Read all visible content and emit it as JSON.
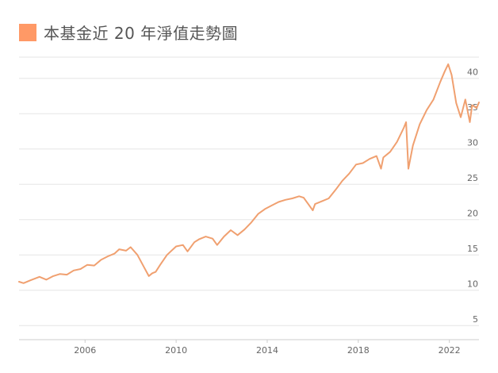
{
  "chart_data": {
    "type": "line",
    "title": "本基金近 20 年淨值走勢圖",
    "xlabel": "",
    "ylabel": "",
    "xlim": [
      2003.1,
      2023.3
    ],
    "ylim": [
      3,
      43
    ],
    "yticks": [
      5,
      10,
      15,
      20,
      25,
      30,
      35,
      40
    ],
    "xticks": [
      2006,
      2010,
      2014,
      2018,
      2022
    ],
    "grid": true,
    "legend": "top-left",
    "color": "#f0a070",
    "legend_color": "#ff9966",
    "series": [
      {
        "name": "本基金近 20 年淨值走勢圖",
        "x": [
          2003.1,
          2003.3,
          2003.6,
          2004.0,
          2004.3,
          2004.6,
          2004.9,
          2005.2,
          2005.5,
          2005.8,
          2006.1,
          2006.4,
          2006.7,
          2007.0,
          2007.3,
          2007.5,
          2007.8,
          2008.0,
          2008.3,
          2008.6,
          2008.8,
          2008.95,
          2009.1,
          2009.3,
          2009.6,
          2010.0,
          2010.3,
          2010.5,
          2010.8,
          2011.0,
          2011.3,
          2011.6,
          2011.8,
          2012.1,
          2012.4,
          2012.7,
          2013.0,
          2013.3,
          2013.6,
          2013.9,
          2014.2,
          2014.5,
          2014.8,
          2015.1,
          2015.4,
          2015.6,
          2015.8,
          2016.0,
          2016.1,
          2016.4,
          2016.7,
          2017.0,
          2017.3,
          2017.6,
          2017.9,
          2018.2,
          2018.5,
          2018.8,
          2019.0,
          2019.1,
          2019.4,
          2019.7,
          2020.0,
          2020.1,
          2020.2,
          2020.4,
          2020.7,
          2021.0,
          2021.3,
          2021.6,
          2021.8,
          2021.95,
          2022.1,
          2022.3,
          2022.5,
          2022.7,
          2022.9,
          2023.0,
          2023.2,
          2023.3
        ],
        "values": [
          11.2,
          11.0,
          11.4,
          11.9,
          11.5,
          12.0,
          12.3,
          12.2,
          12.8,
          13.0,
          13.6,
          13.5,
          14.3,
          14.8,
          15.2,
          15.8,
          15.6,
          16.1,
          15.0,
          13.2,
          12.0,
          12.4,
          12.6,
          13.6,
          15.0,
          16.2,
          16.4,
          15.5,
          16.8,
          17.2,
          17.6,
          17.3,
          16.4,
          17.6,
          18.5,
          17.8,
          18.6,
          19.6,
          20.8,
          21.5,
          22.0,
          22.5,
          22.8,
          23.0,
          23.3,
          23.1,
          22.2,
          21.3,
          22.2,
          22.6,
          23.0,
          24.2,
          25.5,
          26.5,
          27.8,
          28.0,
          28.6,
          29.0,
          27.2,
          28.8,
          29.6,
          31.0,
          33.0,
          33.8,
          27.2,
          30.5,
          33.5,
          35.5,
          37.0,
          39.5,
          41.0,
          42.0,
          40.5,
          36.5,
          34.5,
          37.0,
          33.8,
          36.2,
          35.8,
          36.6
        ]
      }
    ]
  }
}
